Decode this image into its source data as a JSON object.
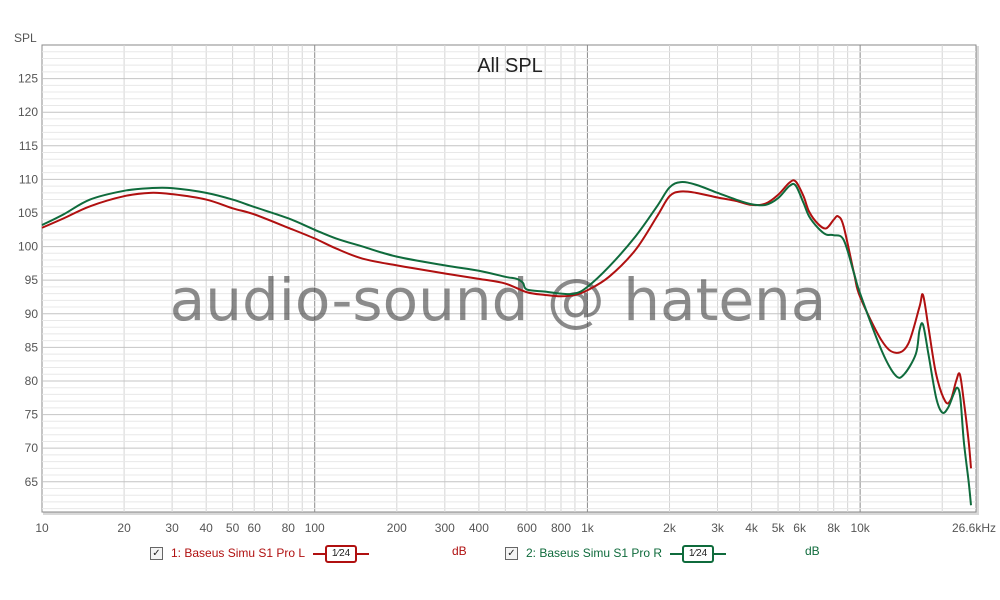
{
  "chart_data": {
    "type": "line",
    "title": "All SPL",
    "ylabel": "SPL",
    "xunit": "kHz",
    "xscale": "log",
    "xlim": [
      10,
      26600
    ],
    "ylim": [
      60.5,
      130
    ],
    "grid": true,
    "y_ticks": [
      65,
      70,
      75,
      80,
      85,
      90,
      95,
      100,
      105,
      110,
      115,
      120,
      125
    ],
    "x_ticks": [
      {
        "v": 10,
        "t": "10"
      },
      {
        "v": 20,
        "t": "20"
      },
      {
        "v": 30,
        "t": "30"
      },
      {
        "v": 40,
        "t": "40"
      },
      {
        "v": 50,
        "t": "50"
      },
      {
        "v": 60,
        "t": "60"
      },
      {
        "v": 80,
        "t": "80"
      },
      {
        "v": 100,
        "t": "100"
      },
      {
        "v": 200,
        "t": "200"
      },
      {
        "v": 300,
        "t": "300"
      },
      {
        "v": 400,
        "t": "400"
      },
      {
        "v": 600,
        "t": "600"
      },
      {
        "v": 800,
        "t": "800"
      },
      {
        "v": 1000,
        "t": "1k"
      },
      {
        "v": 2000,
        "t": "2k"
      },
      {
        "v": 3000,
        "t": "3k"
      },
      {
        "v": 4000,
        "t": "4k"
      },
      {
        "v": 5000,
        "t": "5k"
      },
      {
        "v": 6000,
        "t": "6k"
      },
      {
        "v": 8000,
        "t": "8k"
      },
      {
        "v": 10000,
        "t": "10k"
      },
      {
        "v": 26600,
        "t": "26.6kHz"
      }
    ],
    "series": [
      {
        "name": "1: Baseus Simu S1 Pro L",
        "color": "#b01010",
        "smoothing": "1/24",
        "unit": "dB",
        "points": [
          [
            10,
            102.8
          ],
          [
            12,
            104.2
          ],
          [
            15,
            106
          ],
          [
            20,
            107.5
          ],
          [
            25,
            108
          ],
          [
            30,
            107.8
          ],
          [
            40,
            107
          ],
          [
            50,
            105.7
          ],
          [
            60,
            104.8
          ],
          [
            80,
            102.8
          ],
          [
            100,
            101.2
          ],
          [
            120,
            99.7
          ],
          [
            150,
            98.2
          ],
          [
            200,
            97.2
          ],
          [
            300,
            96
          ],
          [
            400,
            95.2
          ],
          [
            500,
            94.5
          ],
          [
            600,
            93.2
          ],
          [
            700,
            92.8
          ],
          [
            800,
            92.6
          ],
          [
            900,
            92.8
          ],
          [
            1000,
            93.5
          ],
          [
            1200,
            95.5
          ],
          [
            1500,
            99.5
          ],
          [
            1800,
            104.5
          ],
          [
            2000,
            107.5
          ],
          [
            2200,
            108.2
          ],
          [
            2500,
            108
          ],
          [
            3000,
            107.3
          ],
          [
            3500,
            106.8
          ],
          [
            4000,
            106.2
          ],
          [
            4500,
            106.4
          ],
          [
            5000,
            107.7
          ],
          [
            5500,
            109.5
          ],
          [
            5800,
            109.7
          ],
          [
            6200,
            107.5
          ],
          [
            6500,
            105.2
          ],
          [
            7000,
            103.4
          ],
          [
            7500,
            102.7
          ],
          [
            8000,
            104
          ],
          [
            8300,
            104.5
          ],
          [
            8700,
            103
          ],
          [
            9500,
            96
          ],
          [
            10000,
            92.5
          ],
          [
            12000,
            86
          ],
          [
            13500,
            84.2
          ],
          [
            15000,
            85.5
          ],
          [
            16500,
            91
          ],
          [
            17000,
            92.8
          ],
          [
            17800,
            88
          ],
          [
            19000,
            81
          ],
          [
            20500,
            77
          ],
          [
            21500,
            77.2
          ],
          [
            22500,
            80
          ],
          [
            23200,
            81
          ],
          [
            24000,
            77
          ],
          [
            25000,
            71
          ],
          [
            25500,
            67
          ]
        ]
      },
      {
        "name": "2: Baseus Simu S1 Pro R",
        "color": "#0f6b3c",
        "smoothing": "1/24",
        "unit": "dB",
        "points": [
          [
            10,
            103.2
          ],
          [
            12,
            104.8
          ],
          [
            15,
            107
          ],
          [
            20,
            108.3
          ],
          [
            25,
            108.7
          ],
          [
            30,
            108.7
          ],
          [
            40,
            108
          ],
          [
            50,
            107
          ],
          [
            60,
            105.9
          ],
          [
            80,
            104.2
          ],
          [
            100,
            102.5
          ],
          [
            120,
            101.2
          ],
          [
            150,
            100
          ],
          [
            200,
            98.5
          ],
          [
            300,
            97.2
          ],
          [
            400,
            96.4
          ],
          [
            500,
            95.5
          ],
          [
            550,
            95.2
          ],
          [
            580,
            94.6
          ],
          [
            600,
            93.6
          ],
          [
            700,
            93.3
          ],
          [
            800,
            93
          ],
          [
            900,
            93
          ],
          [
            1000,
            94
          ],
          [
            1200,
            97
          ],
          [
            1500,
            101.5
          ],
          [
            1800,
            106
          ],
          [
            2000,
            108.8
          ],
          [
            2200,
            109.6
          ],
          [
            2500,
            109.2
          ],
          [
            3000,
            108
          ],
          [
            3500,
            107
          ],
          [
            4000,
            106.3
          ],
          [
            4500,
            106.2
          ],
          [
            5000,
            107.2
          ],
          [
            5500,
            109
          ],
          [
            5800,
            109.1
          ],
          [
            6200,
            106.5
          ],
          [
            6500,
            104.5
          ],
          [
            7000,
            102.8
          ],
          [
            7500,
            101.8
          ],
          [
            8000,
            101.7
          ],
          [
            8700,
            101
          ],
          [
            9500,
            96
          ],
          [
            10000,
            93
          ],
          [
            12000,
            84.5
          ],
          [
            13500,
            80.8
          ],
          [
            14500,
            81
          ],
          [
            16000,
            84
          ],
          [
            16500,
            87.5
          ],
          [
            17000,
            88.4
          ],
          [
            17800,
            84
          ],
          [
            19000,
            77.5
          ],
          [
            20000,
            75.3
          ],
          [
            21000,
            76
          ],
          [
            22000,
            78
          ],
          [
            22700,
            79
          ],
          [
            23300,
            77.5
          ],
          [
            24000,
            71
          ],
          [
            25000,
            65
          ],
          [
            25500,
            61.5
          ]
        ]
      }
    ]
  },
  "watermark": "audio-sound @ hatena",
  "legend": [
    {
      "checked": "✓",
      "label": "1: Baseus Simu S1 Pro L",
      "smooth_label": "1⁄24",
      "unit": "dB",
      "color": "#b01010"
    },
    {
      "checked": "✓",
      "label": "2: Baseus Simu S1 Pro R",
      "smooth_label": "1⁄24",
      "unit": "dB",
      "color": "#0f6b3c"
    }
  ]
}
